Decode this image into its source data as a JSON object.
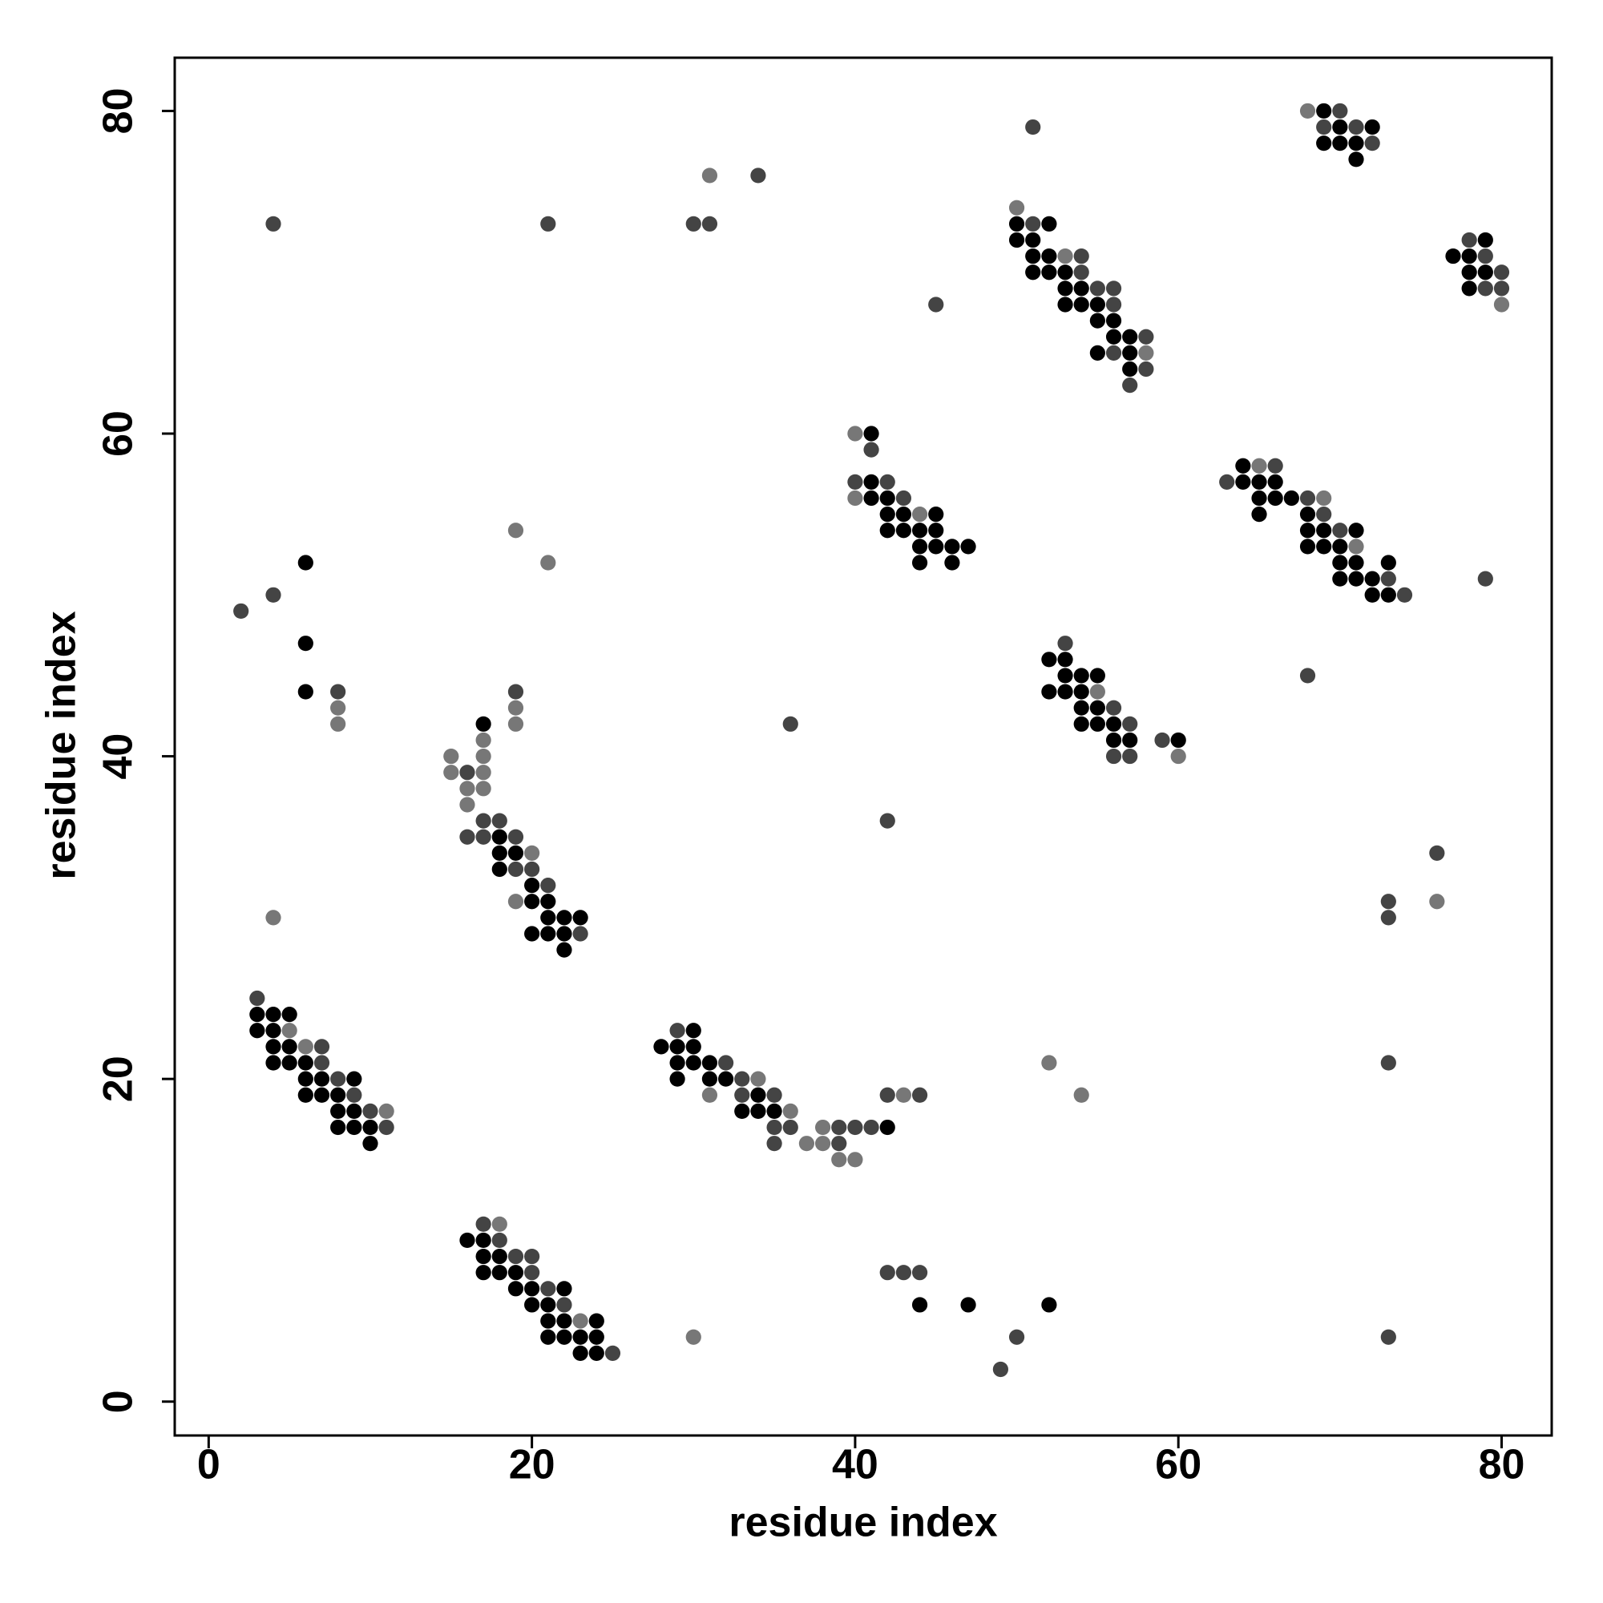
{
  "chart_data": {
    "type": "scatter",
    "xlabel": "residue index",
    "ylabel": "residue index",
    "xlim": [
      -2.1,
      83.1
    ],
    "ylim": [
      -2.1,
      83.3
    ],
    "xticks": [
      0,
      20,
      40,
      60,
      80
    ],
    "yticks": [
      0,
      20,
      40,
      60,
      80
    ],
    "series": [
      {
        "color": "#000000",
        "x": [
          3,
          4,
          5,
          3,
          4,
          4,
          5,
          4,
          5,
          6,
          6,
          7,
          9,
          6,
          7,
          8,
          8,
          9,
          8,
          9,
          10,
          10,
          6,
          6,
          6,
          17,
          18,
          18,
          19,
          18,
          20,
          20,
          21,
          21,
          22,
          23,
          20,
          21,
          22,
          22,
          16,
          17,
          17,
          18,
          17,
          18,
          19,
          19,
          20,
          22,
          20,
          21,
          21,
          22,
          24,
          21,
          22,
          23,
          24,
          23,
          24,
          30,
          28,
          29,
          30,
          29,
          30,
          31,
          29,
          31,
          32,
          34,
          33,
          34,
          35,
          42,
          44,
          47,
          52,
          41,
          41,
          41,
          42,
          42,
          43,
          45,
          42,
          43,
          44,
          45,
          44,
          45,
          46,
          47,
          44,
          46,
          50,
          52,
          50,
          51,
          51,
          52,
          51,
          52,
          53,
          53,
          54,
          53,
          54,
          55,
          55,
          56,
          56,
          57,
          55,
          57,
          57,
          52,
          53,
          53,
          54,
          55,
          52,
          53,
          54,
          54,
          55,
          54,
          55,
          56,
          56,
          57,
          60,
          64,
          64,
          65,
          66,
          65,
          66,
          67,
          65,
          68,
          68,
          69,
          71,
          68,
          69,
          70,
          70,
          71,
          73,
          70,
          71,
          72,
          72,
          73,
          69,
          70,
          72,
          69,
          70,
          71,
          71,
          79,
          77,
          78,
          78,
          79,
          78
        ],
        "y": [
          24,
          24,
          24,
          23,
          23,
          22,
          22,
          21,
          21,
          21,
          20,
          20,
          20,
          19,
          19,
          19,
          18,
          18,
          17,
          17,
          17,
          16,
          52,
          47,
          44,
          42,
          35,
          34,
          34,
          33,
          32,
          31,
          31,
          30,
          30,
          30,
          29,
          29,
          29,
          28,
          10,
          10,
          9,
          9,
          8,
          8,
          8,
          7,
          7,
          7,
          6,
          6,
          5,
          5,
          5,
          4,
          4,
          4,
          4,
          3,
          3,
          23,
          22,
          22,
          22,
          21,
          21,
          21,
          20,
          20,
          20,
          19,
          18,
          18,
          18,
          17,
          6,
          6,
          6,
          60,
          57,
          56,
          56,
          55,
          55,
          55,
          54,
          54,
          54,
          54,
          53,
          53,
          53,
          53,
          52,
          52,
          73,
          73,
          72,
          72,
          71,
          71,
          70,
          70,
          70,
          69,
          69,
          68,
          68,
          68,
          67,
          67,
          66,
          66,
          65,
          65,
          64,
          46,
          46,
          45,
          45,
          45,
          44,
          44,
          44,
          43,
          43,
          42,
          42,
          42,
          41,
          41,
          41,
          58,
          57,
          57,
          57,
          56,
          56,
          56,
          55,
          55,
          54,
          54,
          54,
          53,
          53,
          53,
          52,
          52,
          52,
          51,
          51,
          51,
          50,
          50,
          80,
          79,
          79,
          78,
          78,
          78,
          77,
          72,
          71,
          71,
          70,
          70,
          69
        ]
      },
      {
        "color": "#444444",
        "x": [
          3,
          7,
          7,
          8,
          9,
          10,
          11,
          4,
          2,
          4,
          8,
          16,
          17,
          18,
          16,
          17,
          19,
          19,
          20,
          21,
          23,
          19,
          21,
          17,
          18,
          19,
          20,
          20,
          21,
          22,
          25,
          29,
          32,
          33,
          33,
          35,
          35,
          36,
          39,
          40,
          41,
          35,
          39,
          42,
          44,
          42,
          43,
          44,
          50,
          49,
          42,
          36,
          45,
          51,
          30,
          31,
          34,
          41,
          40,
          42,
          43,
          51,
          54,
          54,
          55,
          56,
          56,
          58,
          56,
          58,
          57,
          53,
          56,
          57,
          59,
          56,
          57,
          66,
          63,
          68,
          69,
          70,
          73,
          74,
          79,
          68,
          76,
          73,
          73,
          73,
          73,
          70,
          69,
          71,
          72,
          78,
          79,
          80,
          79,
          80
        ],
        "y": [
          25,
          22,
          21,
          20,
          19,
          18,
          17,
          73,
          49,
          50,
          44,
          39,
          36,
          36,
          35,
          35,
          35,
          33,
          33,
          32,
          29,
          44,
          73,
          11,
          10,
          9,
          9,
          8,
          7,
          6,
          3,
          23,
          21,
          20,
          19,
          19,
          17,
          17,
          17,
          17,
          17,
          16,
          16,
          19,
          19,
          8,
          8,
          8,
          4,
          2,
          36,
          42,
          68,
          79,
          73,
          73,
          76,
          59,
          57,
          57,
          56,
          73,
          71,
          70,
          69,
          69,
          68,
          66,
          65,
          64,
          63,
          47,
          43,
          42,
          41,
          40,
          40,
          58,
          57,
          56,
          55,
          54,
          51,
          50,
          51,
          45,
          34,
          31,
          30,
          21,
          4,
          80,
          79,
          79,
          78,
          72,
          71,
          70,
          69,
          69
        ]
      },
      {
        "color": "#777777",
        "x": [
          5,
          6,
          11,
          4,
          8,
          8,
          17,
          17,
          15,
          15,
          17,
          16,
          17,
          16,
          20,
          19,
          19,
          19,
          19,
          21,
          18,
          23,
          34,
          31,
          36,
          38,
          37,
          38,
          39,
          40,
          43,
          30,
          52,
          54,
          31,
          40,
          40,
          44,
          50,
          53,
          58,
          55,
          60,
          65,
          69,
          71,
          76,
          68,
          80
        ],
        "y": [
          23,
          22,
          18,
          30,
          43,
          42,
          41,
          40,
          40,
          39,
          39,
          38,
          38,
          37,
          34,
          31,
          43,
          42,
          54,
          52,
          11,
          5,
          20,
          19,
          18,
          17,
          16,
          16,
          15,
          15,
          19,
          4,
          21,
          19,
          76,
          60,
          56,
          55,
          74,
          71,
          65,
          44,
          40,
          58,
          56,
          53,
          31,
          80,
          68
        ]
      }
    ]
  }
}
